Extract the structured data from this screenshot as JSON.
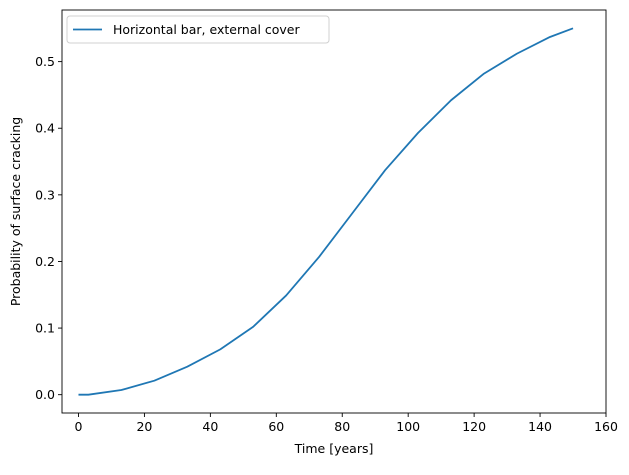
{
  "chart_data": {
    "type": "line",
    "title": "",
    "xlabel": "Time [years]",
    "ylabel": "Probability of surface cracking",
    "xlim": [
      -5,
      160
    ],
    "ylim": [
      -0.0275,
      0.5775
    ],
    "xticks": [
      0,
      20,
      40,
      60,
      80,
      100,
      120,
      140,
      160
    ],
    "xtick_labels": [
      "0",
      "20",
      "40",
      "60",
      "80",
      "100",
      "120",
      "140",
      "160"
    ],
    "yticks": [
      0.0,
      0.1,
      0.2,
      0.3,
      0.4,
      0.5
    ],
    "ytick_labels": [
      "0.0",
      "0.1",
      "0.2",
      "0.3",
      "0.4",
      "0.5"
    ],
    "grid": false,
    "legend_position": "upper-left",
    "series": [
      {
        "name": "Horizontal bar, external cover",
        "color": "#1f77b4",
        "x": [
          0,
          3,
          13,
          23,
          33,
          43,
          53,
          63,
          73,
          83,
          93,
          103,
          113,
          123,
          133,
          143,
          150
        ],
        "y": [
          0.0,
          0.0,
          0.007,
          0.021,
          0.042,
          0.068,
          0.102,
          0.149,
          0.207,
          0.272,
          0.337,
          0.393,
          0.442,
          0.482,
          0.512,
          0.537,
          0.55
        ]
      }
    ]
  }
}
